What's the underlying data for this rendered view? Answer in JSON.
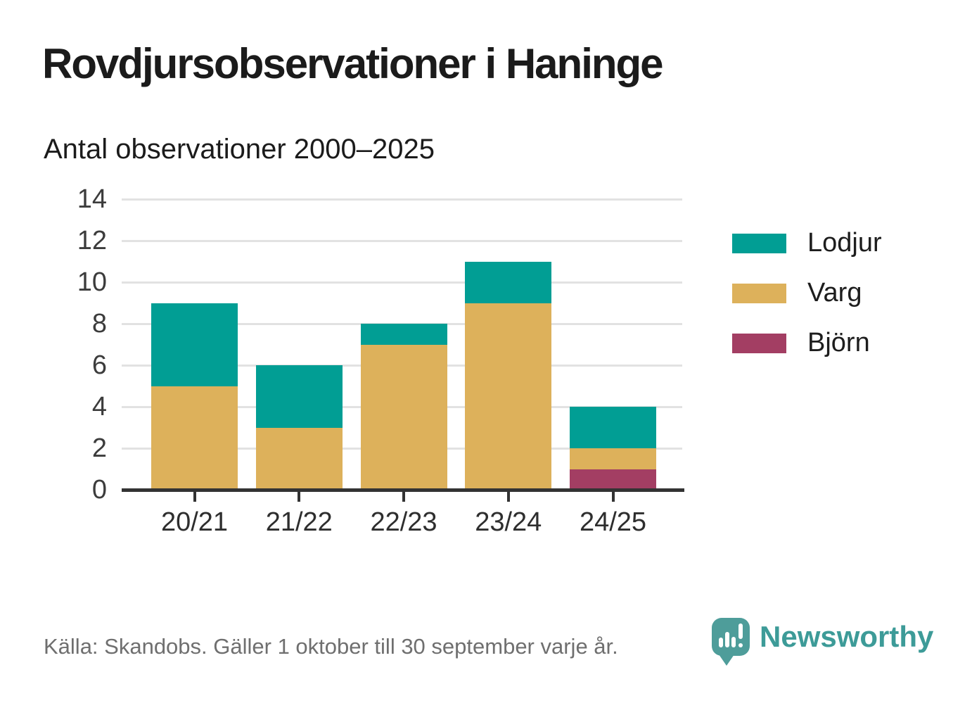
{
  "header": {
    "title": "Rovdjursobservationer i Haninge",
    "subtitle": "Antal observationer 2000–2025"
  },
  "chart_data": {
    "type": "bar",
    "stacked": true,
    "title": "Rovdjursobservationer i Haninge",
    "subtitle": "Antal observationer 2000–2025",
    "categories": [
      "20/21",
      "21/22",
      "22/23",
      "23/24",
      "24/25"
    ],
    "series": [
      {
        "name": "Lodjur",
        "color": "#019E94",
        "values": [
          4,
          3,
          1,
          2,
          2
        ]
      },
      {
        "name": "Varg",
        "color": "#DDB15B",
        "values": [
          5,
          3,
          7,
          9,
          1
        ]
      },
      {
        "name": "Björn",
        "color": "#A33E63",
        "values": [
          0,
          0,
          0,
          0,
          1
        ]
      }
    ],
    "stack_order_bottom_to_top": [
      "Björn",
      "Varg",
      "Lodjur"
    ],
    "totals": [
      9,
      6,
      8,
      11,
      4
    ],
    "xlabel": "",
    "ylabel": "",
    "ylim": [
      0,
      14
    ],
    "yticks": [
      0,
      2,
      4,
      6,
      8,
      10,
      12,
      14
    ],
    "grid": true,
    "legend_position": "right",
    "legend": [
      "Lodjur",
      "Varg",
      "Björn"
    ]
  },
  "footer": {
    "source": "Källa: Skandobs. Gäller 1 oktober till 30 september varje år.",
    "logo_text": "Newsworthy"
  },
  "colors": {
    "lodjur": "#019E94",
    "varg": "#DDB15B",
    "bjorn": "#A33E63",
    "gridline": "#E2E2E2",
    "axis_line": "#333333",
    "axis_text": "#3C3C3C",
    "title_text": "#1B1B1B",
    "source_text": "#6F6F6F",
    "logo_teal": "#3D9B98",
    "logo_bubble_teal": "#4E9D9A"
  }
}
